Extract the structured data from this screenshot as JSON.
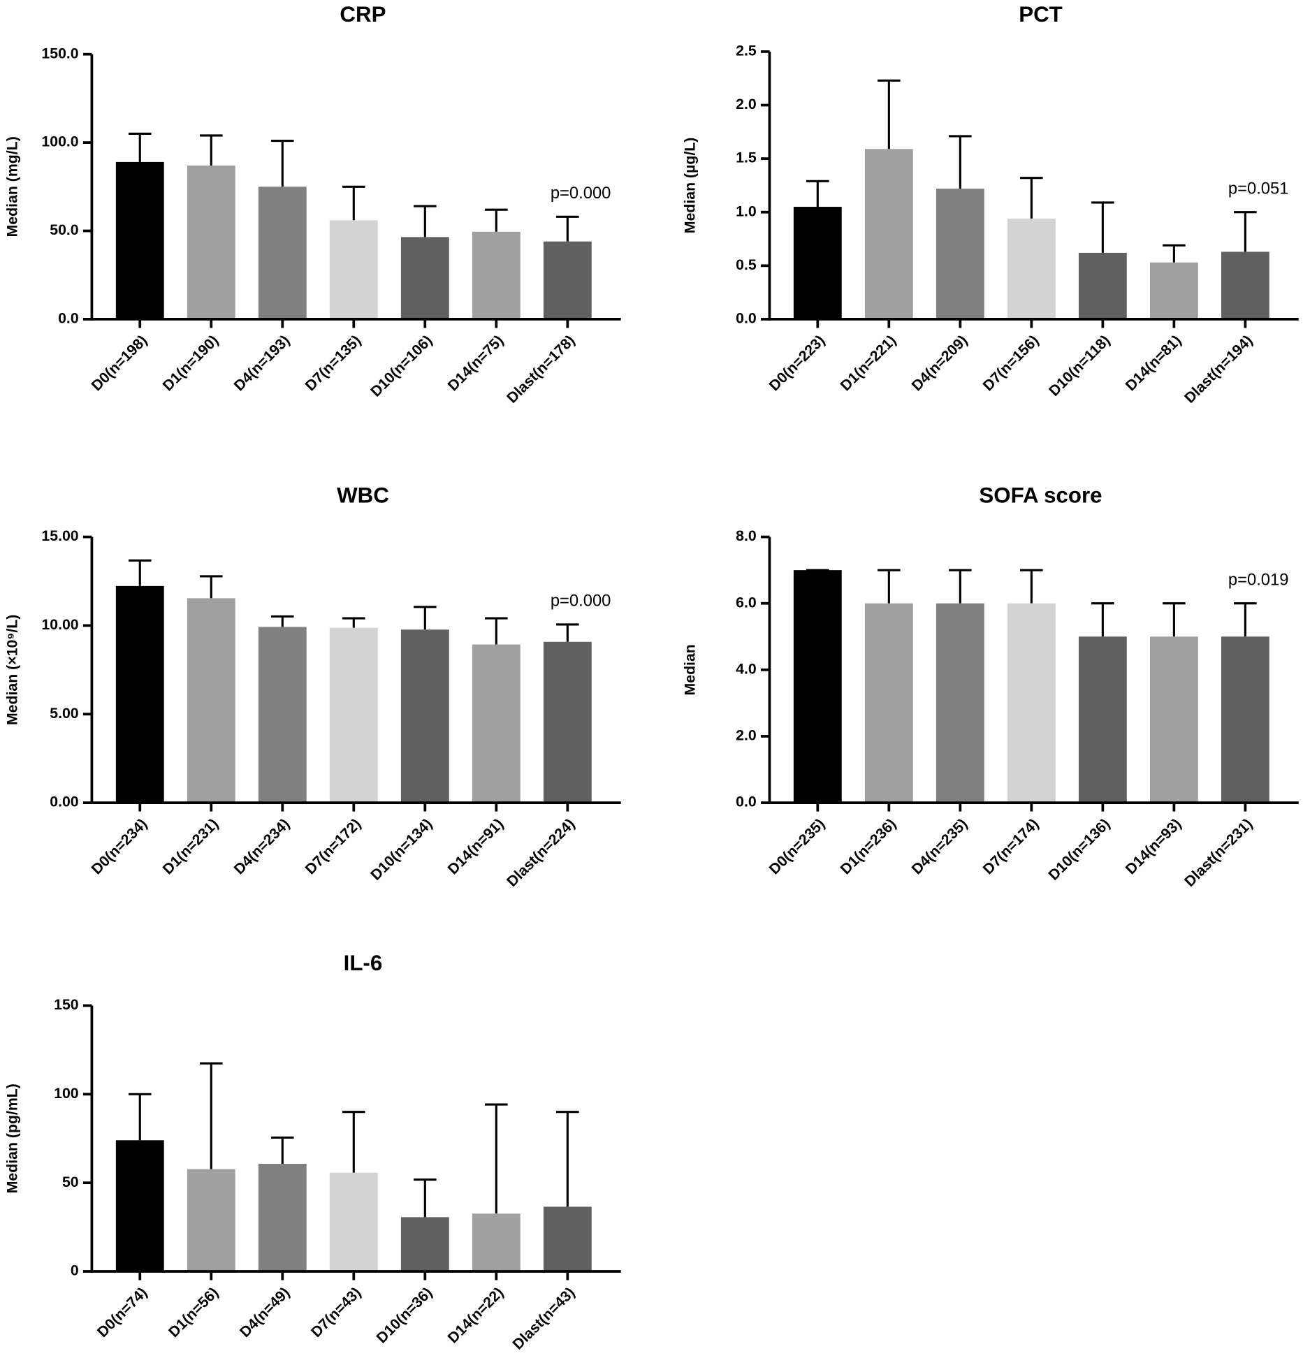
{
  "chart_data": [
    {
      "type": "bar",
      "title": "CRP",
      "y_label": "Median (mg/L)",
      "annotation": "p=0.000",
      "categories": [
        "D0(n=198)",
        "D1(n=190)",
        "D4(n=193)",
        "D7(n=135)",
        "D10(n=106)",
        "D14(n=75)",
        "Dlast(n=178)"
      ],
      "values": [
        89,
        87,
        75,
        56,
        46.5,
        49.5,
        44
      ],
      "errors": [
        16,
        17,
        26,
        19,
        17.5,
        12.5,
        14
      ],
      "colors": [
        "#000000",
        "#a0a0a0",
        "#808080",
        "#d3d3d3",
        "#606060",
        "#a0a0a0",
        "#606060"
      ],
      "ylim": [
        0,
        150
      ],
      "yticks": [
        {
          "value": 0,
          "label": "0.0"
        },
        {
          "value": 50,
          "label": "50.0"
        },
        {
          "value": 100,
          "label": "100.0"
        },
        {
          "value": 150,
          "label": "150.0"
        }
      ]
    },
    {
      "type": "bar",
      "title": "PCT",
      "y_label": "Median (µg/L)",
      "annotation": "p=0.051",
      "categories": [
        "D0(n=223)",
        "D1(n=221)",
        "D4(n=209)",
        "D7(n=156)",
        "D10(n=118)",
        "D14(n=81)",
        "Dlast(n=194)"
      ],
      "values": [
        1.05,
        1.59,
        1.22,
        0.94,
        0.62,
        0.53,
        0.63
      ],
      "errors": [
        0.24,
        0.64,
        0.49,
        0.38,
        0.47,
        0.16,
        0.37
      ],
      "colors": [
        "#000000",
        "#a0a0a0",
        "#808080",
        "#d3d3d3",
        "#606060",
        "#a0a0a0",
        "#606060"
      ],
      "ylim": [
        0,
        2.5
      ],
      "yticks": [
        {
          "value": 0,
          "label": "0.0"
        },
        0.5,
        {
          "value": 1,
          "label": "1.0"
        },
        1.5,
        {
          "value": 2,
          "label": "2.0"
        },
        2.5
      ]
    },
    {
      "type": "bar",
      "title": "WBC",
      "y_label": "Median (×10⁹/L)",
      "annotation": "p=0.000",
      "categories": [
        "D0(n=234)",
        "D1(n=231)",
        "D4(n=234)",
        "D7(n=172)",
        "D10(n=134)",
        "D14(n=91)",
        "Dlast(n=224)"
      ],
      "values": [
        12.23,
        11.54,
        9.92,
        9.87,
        9.77,
        8.93,
        9.08
      ],
      "errors": [
        1.44,
        1.24,
        0.59,
        0.54,
        1.28,
        1.48,
        0.98
      ],
      "colors": [
        "#000000",
        "#a0a0a0",
        "#808080",
        "#d3d3d3",
        "#606060",
        "#a0a0a0",
        "#606060"
      ],
      "ylim": [
        0,
        15
      ],
      "yticks": [
        {
          "value": 0,
          "label": "0.00"
        },
        {
          "value": 5,
          "label": "5.00"
        },
        {
          "value": 10,
          "label": "10.00"
        },
        {
          "value": 15,
          "label": "15.00"
        }
      ]
    },
    {
      "type": "bar",
      "title": "SOFA score",
      "y_label": "Median",
      "annotation": "p=0.019",
      "categories": [
        "D0(n=235)",
        "D1(n=236)",
        "D4(n=235)",
        "D7(n=174)",
        "D10(n=136)",
        "D14(n=93)",
        "Dlast(n=231)"
      ],
      "values": [
        7,
        6,
        6,
        6,
        5,
        5,
        5
      ],
      "errors": [
        0,
        1,
        1,
        1,
        1,
        1,
        1
      ],
      "colors": [
        "#000000",
        "#a0a0a0",
        "#808080",
        "#d3d3d3",
        "#606060",
        "#a0a0a0",
        "#606060"
      ],
      "ylim": [
        0,
        8
      ],
      "yticks": [
        {
          "value": 0,
          "label": "0.0"
        },
        {
          "value": 2,
          "label": "2.0"
        },
        {
          "value": 4,
          "label": "4.0"
        },
        {
          "value": 6,
          "label": "6.0"
        },
        {
          "value": 8,
          "label": "8.0"
        }
      ]
    },
    {
      "type": "bar",
      "title": "IL-6",
      "y_label": "Median (pg/mL)",
      "categories": [
        "D0(n=74)",
        "D1(n=56)",
        "D4(n=49)",
        "D7(n=43)",
        "D10(n=36)",
        "D14(n=22)",
        "Dlast(n=43)"
      ],
      "values": [
        74,
        57.7,
        60.7,
        55.7,
        30.6,
        32.6,
        36.5
      ],
      "errors": [
        26,
        59.7,
        14.8,
        34.3,
        21.2,
        61.6,
        53.5
      ],
      "colors": [
        "#000000",
        "#a0a0a0",
        "#808080",
        "#d3d3d3",
        "#606060",
        "#a0a0a0",
        "#606060"
      ],
      "ylim": [
        0,
        150
      ],
      "yticks": [
        0,
        50,
        100,
        150
      ]
    }
  ]
}
